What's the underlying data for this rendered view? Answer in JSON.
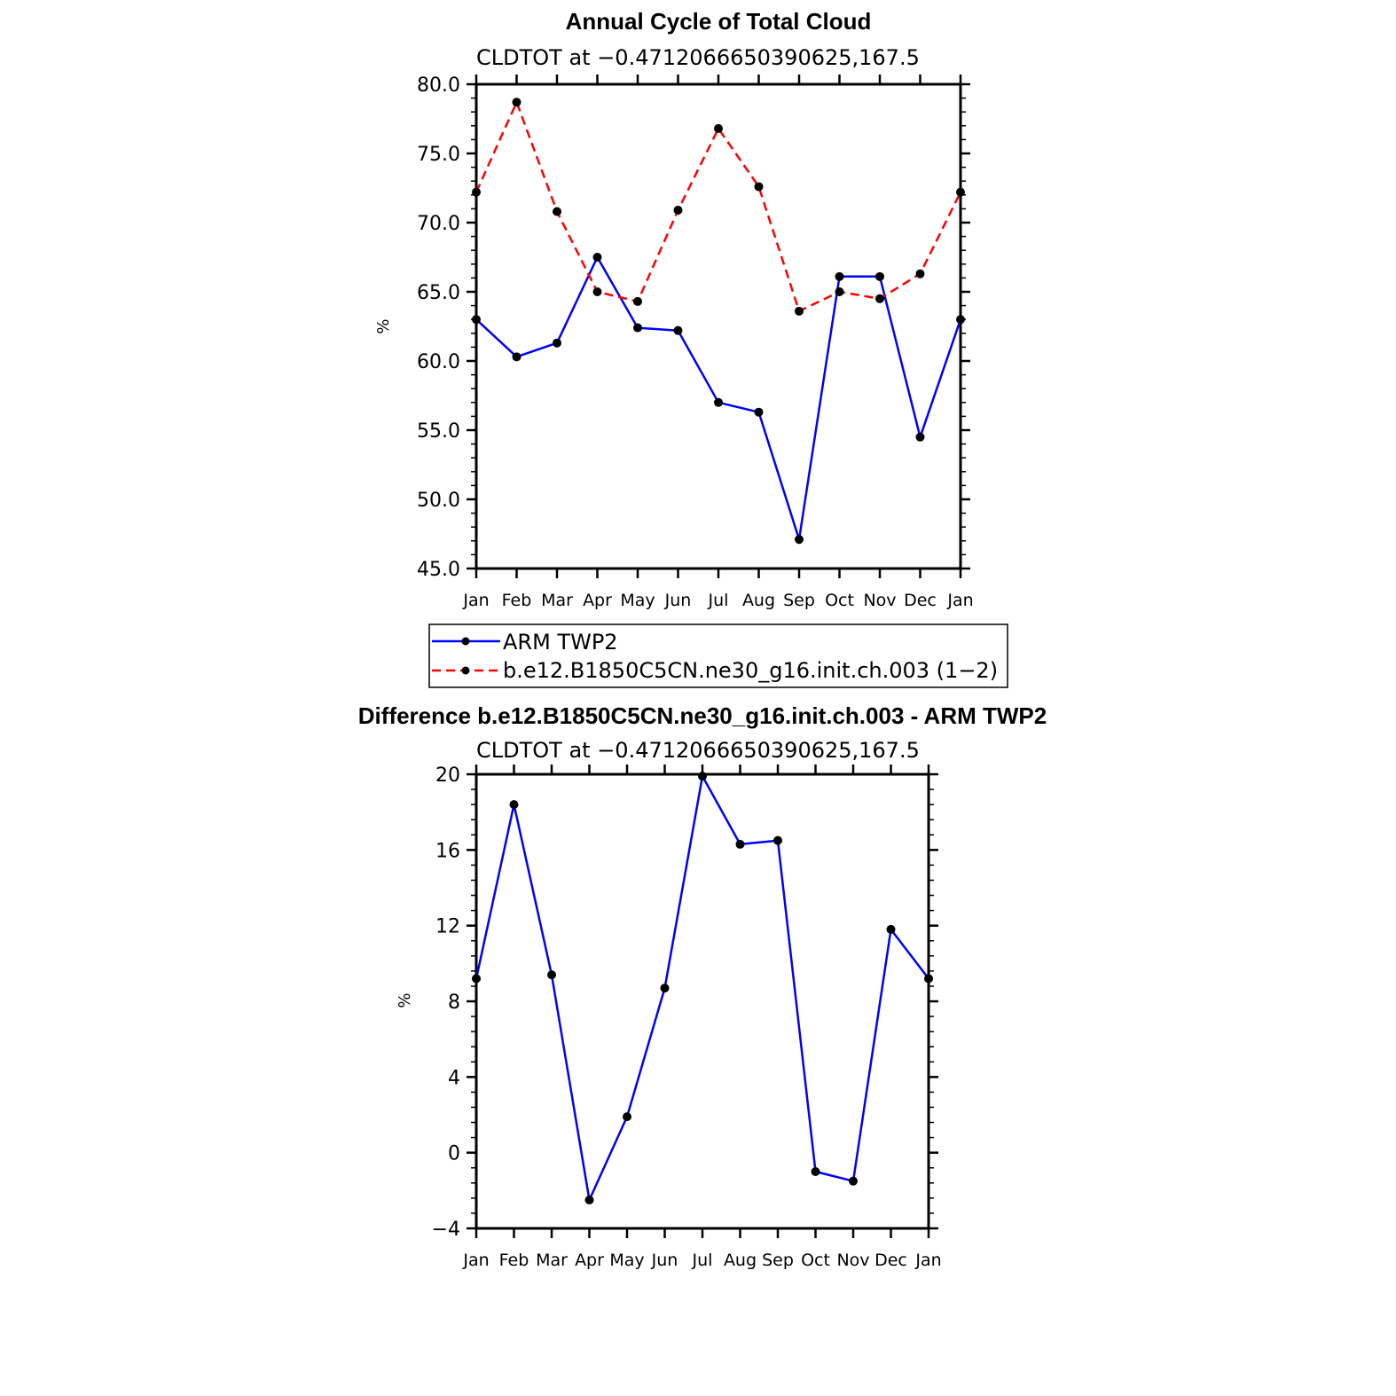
{
  "chart_data": [
    {
      "type": "line",
      "title": "Annual Cycle of Total Cloud",
      "subtitle": "CLDTOT at −0.4712066650390625,167.5",
      "ylabel": "%",
      "xlabel": "",
      "categories": [
        "Jan",
        "Feb",
        "Mar",
        "Apr",
        "May",
        "Jun",
        "Jul",
        "Aug",
        "Sep",
        "Oct",
        "Nov",
        "Dec",
        "Jan"
      ],
      "ylim": [
        45,
        80
      ],
      "yticks": [
        45,
        50,
        55,
        60,
        65,
        70,
        75,
        80
      ],
      "ytick_labels": [
        "45.0",
        "50.0",
        "55.0",
        "60.0",
        "65.0",
        "70.0",
        "75.0",
        "80.0"
      ],
      "grid": false,
      "legend_placement": "below",
      "series": [
        {
          "name": "ARM TWP2",
          "color": "#0000ff",
          "style": "solid",
          "values": [
            63.0,
            60.3,
            61.3,
            67.5,
            62.4,
            62.2,
            57.0,
            56.3,
            47.1,
            66.1,
            66.1,
            54.5,
            63.0
          ]
        },
        {
          "name": "b.e12.B1850C5CN.ne30_g16.init.ch.003 (1−2)",
          "color": "#ff0000",
          "style": "dashed",
          "values": [
            72.2,
            78.7,
            70.8,
            65.0,
            64.3,
            70.9,
            76.8,
            72.6,
            63.6,
            65.0,
            64.5,
            66.3,
            72.2
          ]
        }
      ]
    },
    {
      "type": "line",
      "title": "Difference b.e12.B1850C5CN.ne30_g16.init.ch.003 - ARM TWP2",
      "subtitle": "CLDTOT at −0.4712066650390625,167.5",
      "ylabel": "%",
      "xlabel": "",
      "categories": [
        "Jan",
        "Feb",
        "Mar",
        "Apr",
        "May",
        "Jun",
        "Jul",
        "Aug",
        "Sep",
        "Oct",
        "Nov",
        "Dec",
        "Jan"
      ],
      "ylim": [
        -4,
        20
      ],
      "yticks": [
        -4,
        0,
        4,
        8,
        12,
        16,
        20
      ],
      "ytick_labels": [
        "−4",
        "0",
        "4",
        "8",
        "12",
        "16",
        "20"
      ],
      "grid": false,
      "series": [
        {
          "color": "#0000ff",
          "style": "solid",
          "values": [
            9.2,
            18.4,
            9.4,
            -2.5,
            1.9,
            8.7,
            19.9,
            16.3,
            16.5,
            -1.0,
            -1.5,
            11.8,
            9.2
          ]
        }
      ]
    }
  ]
}
